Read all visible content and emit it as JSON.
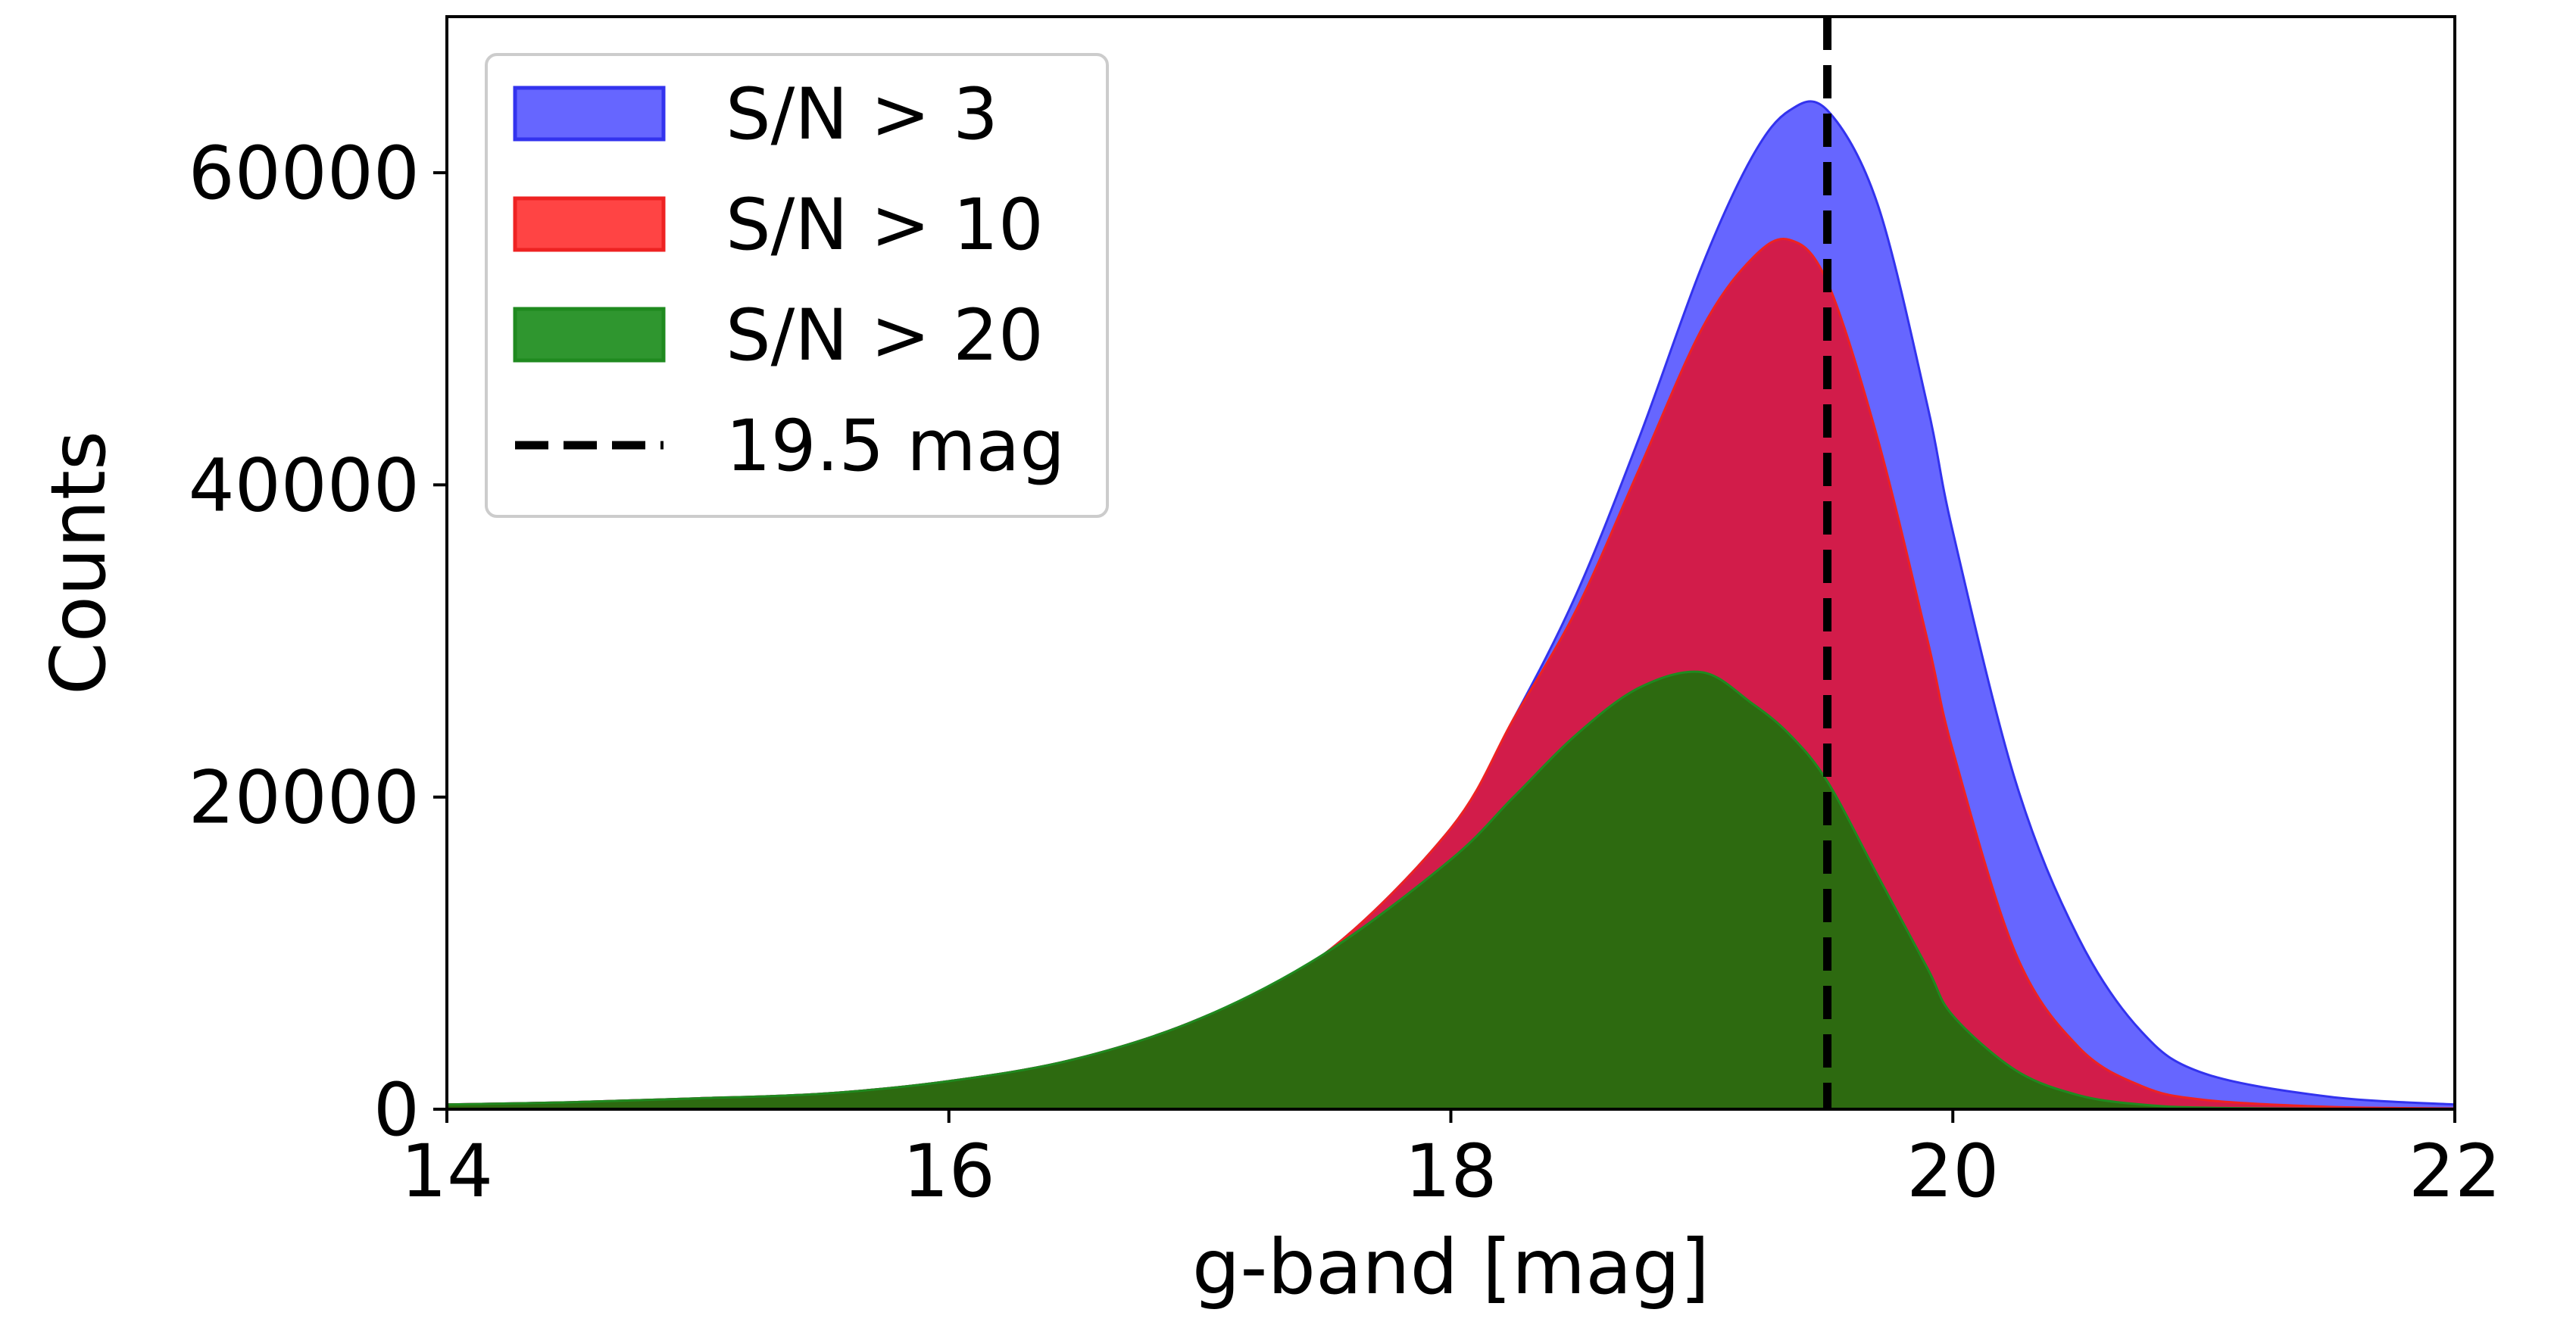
{
  "chart_data": {
    "type": "area",
    "title": "",
    "xlabel": "g-band [mag]",
    "ylabel": "Counts",
    "xlim": [
      14,
      22
    ],
    "ylim": [
      0,
      70000
    ],
    "xticks": [
      14,
      16,
      18,
      20,
      22
    ],
    "xtick_labels": [
      "14",
      "16",
      "18",
      "20",
      "22"
    ],
    "yticks": [
      0,
      20000,
      40000,
      60000
    ],
    "ytick_labels": [
      "0",
      "20000",
      "40000",
      "60000"
    ],
    "grid": false,
    "legend_position": "top-left",
    "x": [
      14.0,
      14.5,
      15.0,
      15.5,
      16.0,
      16.5,
      17.0,
      17.5,
      18.0,
      18.25,
      18.5,
      18.75,
      19.0,
      19.2,
      19.35,
      19.5,
      19.7,
      19.9,
      20.0,
      20.25,
      20.5,
      20.75,
      21.0,
      21.5,
      22.0
    ],
    "series": [
      {
        "name": "S/N > 3",
        "color": "#6666ff",
        "edge": "#3333ee",
        "values": [
          300,
          450,
          700,
          1000,
          1800,
          3200,
          5800,
          10000,
          18000,
          25000,
          33000,
          43000,
          54000,
          61000,
          64000,
          64000,
          58000,
          45000,
          37000,
          21000,
          11000,
          5000,
          2300,
          800,
          300
        ]
      },
      {
        "name": "S/N > 10",
        "color": "#ff4444",
        "edge": "#ee2222",
        "values": [
          300,
          450,
          700,
          1000,
          1800,
          3200,
          5800,
          10000,
          18000,
          25000,
          32000,
          41000,
          50000,
          54500,
          55700,
          53000,
          43000,
          30000,
          23000,
          10000,
          4000,
          1500,
          600,
          150,
          50
        ]
      },
      {
        "name": "S/N > 20",
        "color": "#2d6a10",
        "edge": "#1f8a1f",
        "values": [
          300,
          450,
          700,
          1000,
          1800,
          3200,
          5800,
          10000,
          16000,
          20000,
          24000,
          27000,
          28000,
          26000,
          24000,
          21000,
          15000,
          9000,
          6000,
          2500,
          900,
          300,
          100,
          30,
          10
        ]
      }
    ],
    "overlap_color": "#d21c4a",
    "vline": {
      "x": 19.5,
      "label": "19.5 mag",
      "color": "#000000",
      "style": "dashed"
    },
    "legend": [
      {
        "label": "S/N > 3",
        "kind": "patch",
        "fill": "#6666ff",
        "edge": "#3333ee"
      },
      {
        "label": "S/N > 10",
        "kind": "patch",
        "fill": "#ff4444",
        "edge": "#ee2222"
      },
      {
        "label": "S/N > 20",
        "kind": "patch",
        "fill": "#2f962f",
        "edge": "#1f8a1f"
      },
      {
        "label": "19.5 mag",
        "kind": "line",
        "fill": "#000000",
        "edge": "#000000"
      }
    ]
  }
}
